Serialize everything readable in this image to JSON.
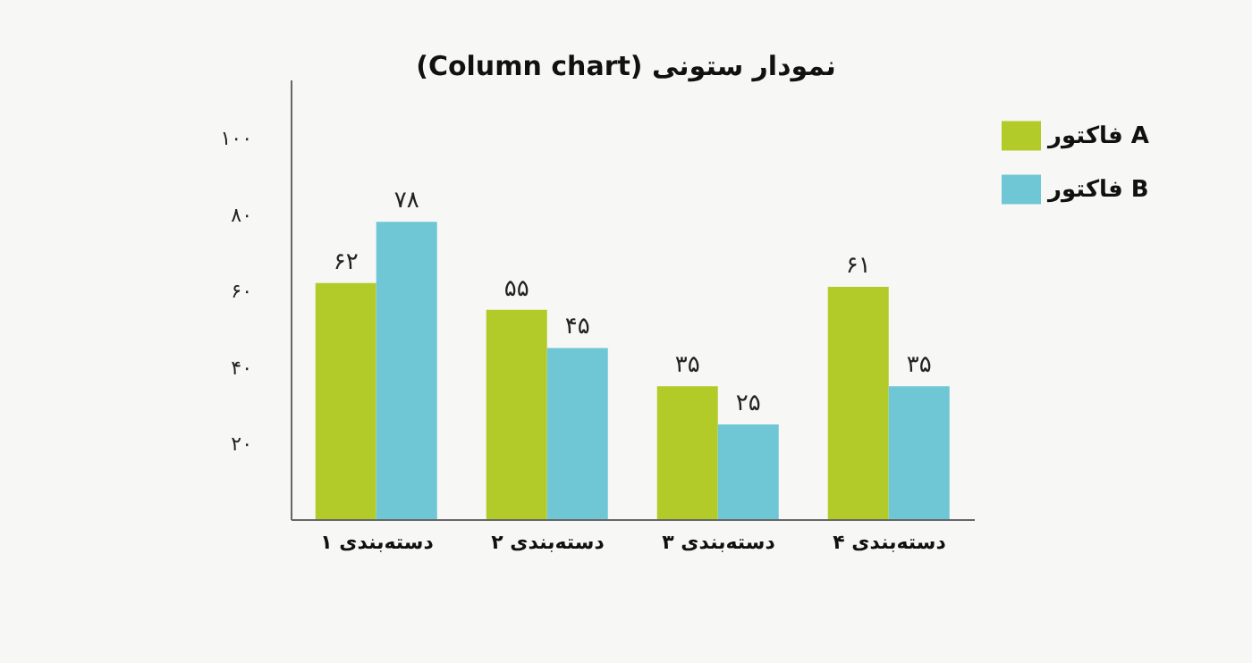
{
  "chart_data": {
    "type": "bar",
    "title": "نمودار ستونی (Column chart)",
    "categories": [
      "دسته‌بندی ۱",
      "دسته‌بندی ۲",
      "دسته‌بندی ۳",
      "دسته‌بندی ۴"
    ],
    "series": [
      {
        "name": "فاکتور A",
        "color": "#b3cb29",
        "values": [
          62,
          55,
          35,
          61
        ],
        "value_labels": [
          "۶۲",
          "۵۵",
          "۳۵",
          "۶۱"
        ]
      },
      {
        "name": "فاکتور B",
        "color": "#6fc7d6",
        "values": [
          78,
          45,
          25,
          35
        ],
        "value_labels": [
          "۷۸",
          "۴۵",
          "۲۵",
          "۳۵"
        ]
      }
    ],
    "ylim": [
      0,
      115
    ],
    "yticks": [
      {
        "value": 20,
        "label": "۲۰"
      },
      {
        "value": 40,
        "label": "۴۰"
      },
      {
        "value": 60,
        "label": "۶۰"
      },
      {
        "value": 80,
        "label": "۸۰"
      },
      {
        "value": 100,
        "label": "۱۰۰"
      }
    ],
    "grid": false,
    "legend": "top right"
  }
}
